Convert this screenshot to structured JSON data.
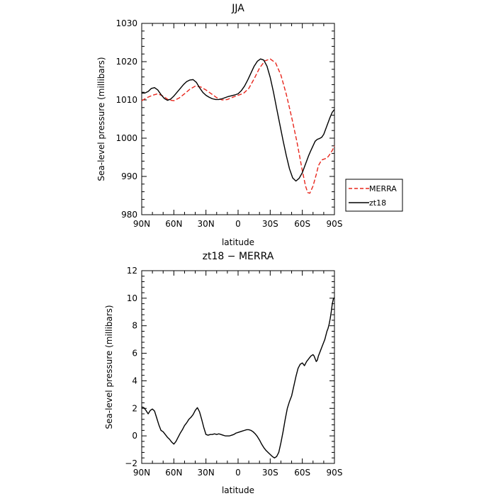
{
  "chart_data": [
    {
      "type": "line",
      "title": "JJA",
      "xlabel": "latitude",
      "ylabel": "Sea-level pressure (millibars)",
      "xlim": [
        90,
        -90
      ],
      "ylim": [
        980,
        1030
      ],
      "xticks": [
        90,
        60,
        30,
        0,
        -30,
        -60,
        -90
      ],
      "xtick_labels": [
        "90N",
        "60N",
        "30N",
        "0",
        "30S",
        "60S",
        "90S"
      ],
      "yticks": [
        980,
        990,
        1000,
        1010,
        1020,
        1030
      ],
      "ytick_labels": [
        "980",
        "990",
        "1000",
        "1010",
        "1020",
        "1030"
      ],
      "legend": {
        "placement": "right",
        "entries": [
          "MERRA",
          "zt18"
        ]
      },
      "series": [
        {
          "name": "MERRA",
          "color": "#e8261c",
          "dash": "dashed",
          "x": [
            90,
            85,
            80,
            75,
            70,
            65,
            60,
            55,
            50,
            45,
            40,
            35,
            30,
            25,
            20,
            15,
            10,
            5,
            0,
            -5,
            -10,
            -15,
            -20,
            -25,
            -30,
            -35,
            -40,
            -45,
            -50,
            -55,
            -60,
            -63,
            -65,
            -67,
            -70,
            -73,
            -75,
            -78,
            -80,
            -83,
            -85,
            -88,
            -90
          ],
          "y": [
            1009.8,
            1010.6,
            1011.2,
            1011.6,
            1011.0,
            1010.0,
            1009.8,
            1010.5,
            1011.6,
            1012.8,
            1013.6,
            1013.4,
            1012.6,
            1011.6,
            1010.6,
            1010.0,
            1010.1,
            1010.7,
            1011.2,
            1011.7,
            1013.0,
            1015.5,
            1018.3,
            1020.2,
            1020.7,
            1019.7,
            1016.5,
            1011.5,
            1005.5,
            999.0,
            991.5,
            987.5,
            985.8,
            985.6,
            987.5,
            990.5,
            992.8,
            994.3,
            994.5,
            994.8,
            995.5,
            996.8,
            998.0
          ]
        },
        {
          "name": "zt18",
          "color": "#000000",
          "dash": "solid",
          "x": [
            90,
            87,
            84,
            81,
            78,
            75,
            72,
            69,
            66,
            63,
            60,
            57,
            54,
            51,
            48,
            45,
            42,
            39,
            36,
            33,
            30,
            27,
            24,
            21,
            18,
            15,
            12,
            9,
            6,
            3,
            0,
            -3,
            -6,
            -9,
            -12,
            -15,
            -18,
            -21,
            -24,
            -27,
            -30,
            -33,
            -36,
            -39,
            -42,
            -45,
            -48,
            -51,
            -54,
            -57,
            -60,
            -62,
            -64,
            -66,
            -68,
            -70,
            -72,
            -74,
            -76,
            -78,
            -80,
            -82,
            -84,
            -86,
            -88,
            -90
          ],
          "y": [
            1011.8,
            1011.8,
            1012.2,
            1013.0,
            1013.2,
            1012.6,
            1011.4,
            1010.4,
            1009.9,
            1010.2,
            1011.0,
            1012.0,
            1013.0,
            1014.0,
            1014.8,
            1015.2,
            1015.3,
            1014.6,
            1013.2,
            1012.0,
            1011.2,
            1010.7,
            1010.3,
            1010.1,
            1010.1,
            1010.3,
            1010.6,
            1010.9,
            1011.1,
            1011.3,
            1011.6,
            1012.4,
            1013.6,
            1015.2,
            1017.0,
            1018.8,
            1020.1,
            1020.7,
            1020.4,
            1018.8,
            1015.9,
            1012.1,
            1007.8,
            1003.6,
            999.4,
            995.5,
            992.0,
            989.6,
            988.8,
            989.5,
            991.0,
            992.5,
            994.0,
            995.5,
            996.8,
            998.0,
            999.2,
            999.7,
            999.9,
            1000.2,
            1001.0,
            1002.5,
            1004.0,
            1005.5,
            1006.8,
            1007.5
          ]
        }
      ]
    },
    {
      "type": "line",
      "title": "zt18 − MERRA",
      "xlabel": "latitude",
      "ylabel": "Sea-level pressure (millibars)",
      "xlim": [
        90,
        -90
      ],
      "ylim": [
        -2,
        12
      ],
      "xticks": [
        90,
        60,
        30,
        0,
        -30,
        -60,
        -90
      ],
      "xtick_labels": [
        "90N",
        "60N",
        "30N",
        "0",
        "30S",
        "60S",
        "90S"
      ],
      "yticks": [
        -2,
        0,
        2,
        4,
        6,
        8,
        10,
        12
      ],
      "ytick_labels": [
        "−2",
        "0",
        "2",
        "4",
        "6",
        "8",
        "10",
        "12"
      ],
      "series": [
        {
          "color": "#000000",
          "dash": "solid",
          "x": [
            90,
            88,
            86,
            84,
            82,
            80,
            78,
            76,
            74,
            72,
            70,
            68,
            66,
            64,
            62,
            60,
            58,
            56,
            54,
            52,
            50,
            48,
            46,
            44,
            42,
            40,
            38,
            36,
            34,
            32,
            30,
            28,
            26,
            24,
            22,
            20,
            18,
            16,
            14,
            12,
            10,
            8,
            6,
            4,
            2,
            0,
            -2,
            -4,
            -6,
            -8,
            -10,
            -12,
            -14,
            -16,
            -18,
            -20,
            -22,
            -24,
            -26,
            -28,
            -30,
            -32,
            -34,
            -36,
            -38,
            -40,
            -42,
            -44,
            -46,
            -48,
            -50,
            -52,
            -54,
            -56,
            -58,
            -60,
            -62,
            -64,
            -66,
            -68,
            -70,
            -71,
            -72,
            -73,
            -74,
            -75,
            -76,
            -77,
            -78,
            -79,
            -80,
            -81,
            -82,
            -83,
            -84,
            -85,
            -86,
            -87,
            -88,
            -89,
            -90
          ],
          "y": [
            2.1,
            2.05,
            1.85,
            1.6,
            1.85,
            1.95,
            1.8,
            1.3,
            0.8,
            0.4,
            0.3,
            0.1,
            -0.1,
            -0.25,
            -0.45,
            -0.6,
            -0.4,
            -0.1,
            0.2,
            0.45,
            0.75,
            0.95,
            1.2,
            1.35,
            1.55,
            1.85,
            2.05,
            1.75,
            1.2,
            0.6,
            0.1,
            0.05,
            0.1,
            0.1,
            0.15,
            0.1,
            0.15,
            0.1,
            0.05,
            0.0,
            0.0,
            0.0,
            0.05,
            0.1,
            0.2,
            0.25,
            0.3,
            0.35,
            0.4,
            0.45,
            0.45,
            0.4,
            0.3,
            0.15,
            -0.05,
            -0.3,
            -0.6,
            -0.85,
            -1.05,
            -1.2,
            -1.35,
            -1.5,
            -1.6,
            -1.5,
            -1.2,
            -0.5,
            0.3,
            1.2,
            2.0,
            2.5,
            2.9,
            3.6,
            4.3,
            4.9,
            5.2,
            5.3,
            5.1,
            5.4,
            5.6,
            5.8,
            5.9,
            5.8,
            5.6,
            5.4,
            5.5,
            5.8,
            6.0,
            6.2,
            6.4,
            6.6,
            6.8,
            7.0,
            7.3,
            7.6,
            7.8,
            8.1,
            8.5,
            9.0,
            9.6,
            9.95,
            10.05
          ]
        }
      ]
    }
  ]
}
